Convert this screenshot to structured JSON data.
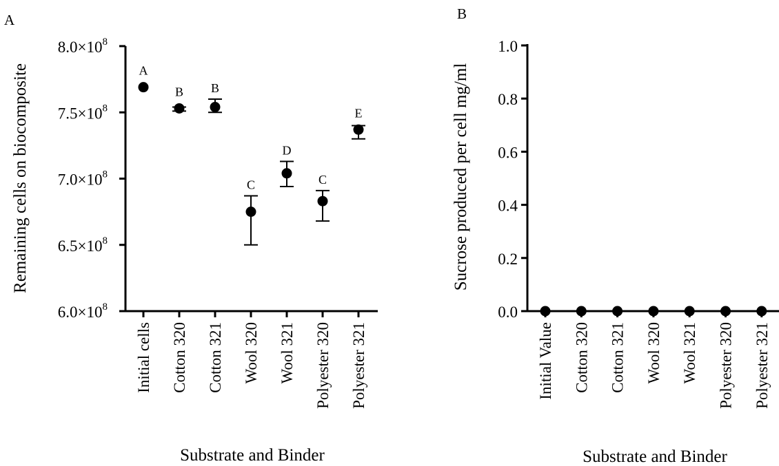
{
  "chart_data": [
    {
      "panel_label": "A",
      "type": "scatter",
      "xlabel": "Substrate and Binder",
      "ylabel": "Remaining cells on biocomposite",
      "y_tick_mantissas": [
        "6.0",
        "6.5",
        "7.0",
        "7.5",
        "8.0"
      ],
      "y_tick_exponent": "8",
      "y_ticks": [
        600000000,
        650000000,
        700000000,
        750000000,
        800000000
      ],
      "ylim": [
        600000000,
        800000000
      ],
      "categories": [
        "Initial cells",
        "Cotton 320",
        "Cotton 321",
        "Wool 320",
        "Wool 321",
        "Polyester 320",
        "Polyester 321"
      ],
      "values": [
        769000000,
        753000000,
        754000000,
        675000000,
        704000000,
        683000000,
        737000000
      ],
      "error_low": [
        769000000,
        751000000,
        750000000,
        650000000,
        694000000,
        668000000,
        730000000
      ],
      "error_high": [
        769000000,
        754000000,
        760000000,
        687000000,
        713000000,
        691000000,
        740000000
      ],
      "significance": [
        "A",
        "B",
        "B",
        "C",
        "D",
        "C",
        "E"
      ]
    },
    {
      "panel_label": "B",
      "type": "scatter",
      "xlabel": "Substrate and Binder",
      "ylabel": "Sucrose produced per cell mg/ml",
      "y_tick_labels": [
        "0.0",
        "0.2",
        "0.4",
        "0.6",
        "0.8",
        "1.0"
      ],
      "y_ticks": [
        0,
        0.2,
        0.4,
        0.6,
        0.8,
        1.0
      ],
      "ylim": [
        0,
        1.0
      ],
      "categories": [
        "Initial Value",
        "Cotton 320",
        "Cotton 321",
        "Wool 320",
        "Wool 321",
        "Polyester 320",
        "Polyester 321"
      ],
      "values": [
        0,
        0,
        0,
        0,
        0,
        0,
        0
      ]
    }
  ]
}
